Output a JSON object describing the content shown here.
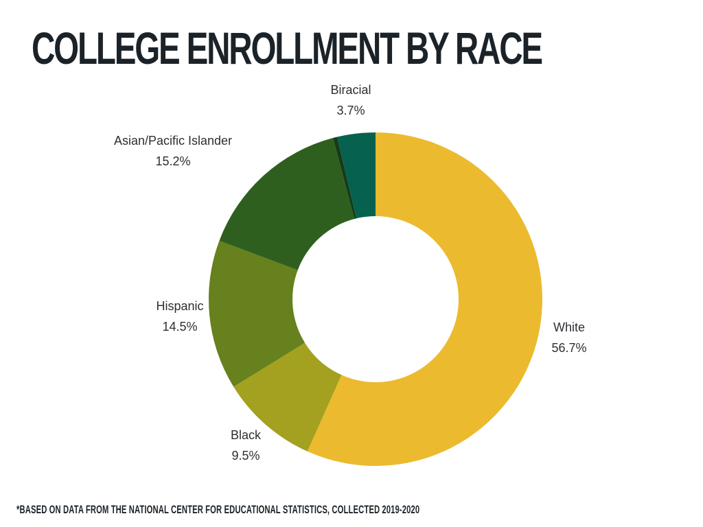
{
  "title": "COLLEGE ENROLLMENT BY RACE",
  "footnote": "*BASED ON DATA FROM THE NATIONAL CENTER FOR EDUCATIONAL STATISTICS, COLLECTED 2019-2020",
  "chart_data": {
    "type": "pie",
    "title": "COLLEGE ENROLLMENT BY RACE",
    "donut": true,
    "start_angle_deg": 0,
    "direction": "clockwise",
    "slices": [
      {
        "label": "White",
        "value": 56.7,
        "value_label": "56.7%",
        "color": "#ebba2e"
      },
      {
        "label": "Black",
        "value": 9.5,
        "value_label": "9.5%",
        "color": "#a3a11f"
      },
      {
        "label": "Hispanic",
        "value": 14.5,
        "value_label": "14.5%",
        "color": "#66811d"
      },
      {
        "label": "Asian/Pacific Islander",
        "value": 15.2,
        "value_label": "15.2%",
        "color": "#2f5f1f"
      },
      {
        "label": "",
        "value": 0.4,
        "value_label": "",
        "color": "#163b17"
      },
      {
        "label": "Biracial",
        "value": 3.7,
        "value_label": "3.7%",
        "color": "#06624f"
      }
    ]
  }
}
